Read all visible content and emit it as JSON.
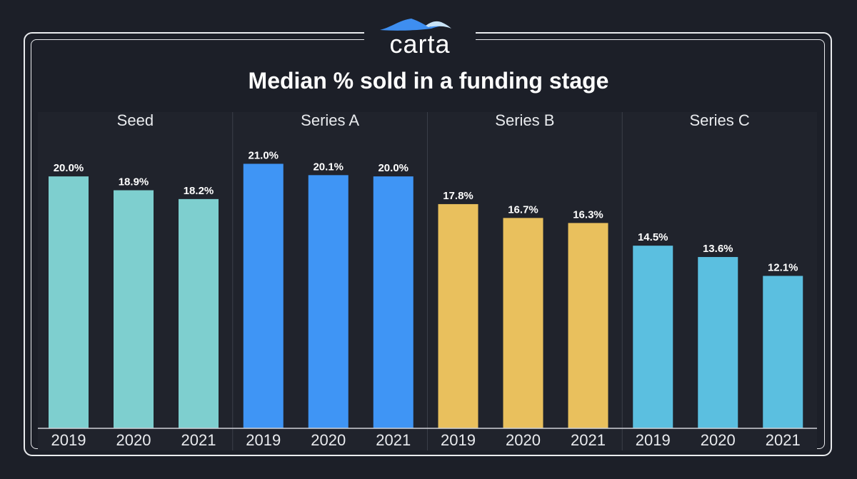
{
  "brand": {
    "logo_text": "carta",
    "logo_mark_icon": "mountain-peaks-icon"
  },
  "colors": {
    "background": "#1c1f28",
    "panel_background": "#20232c",
    "frame": "#e9ebee",
    "logo_blue": "#3e8ef0",
    "logo_light": "#c9e3f6"
  },
  "chart_data": {
    "type": "bar",
    "title": "Median % sold in a funding stage",
    "categories": [
      "2019",
      "2020",
      "2021"
    ],
    "ylim": [
      0,
      22.5
    ],
    "value_suffix": "%",
    "grid": false,
    "panels": [
      {
        "name": "Seed",
        "color": "#7ecfcf",
        "values": [
          20.0,
          18.9,
          18.2
        ]
      },
      {
        "name": "Series A",
        "color": "#3f95f5",
        "values": [
          21.0,
          20.1,
          20.0
        ]
      },
      {
        "name": "Series B",
        "color": "#e9c05d",
        "values": [
          17.8,
          16.7,
          16.3
        ]
      },
      {
        "name": "Series C",
        "color": "#5bbfe0",
        "values": [
          14.5,
          13.6,
          12.1
        ]
      }
    ]
  }
}
